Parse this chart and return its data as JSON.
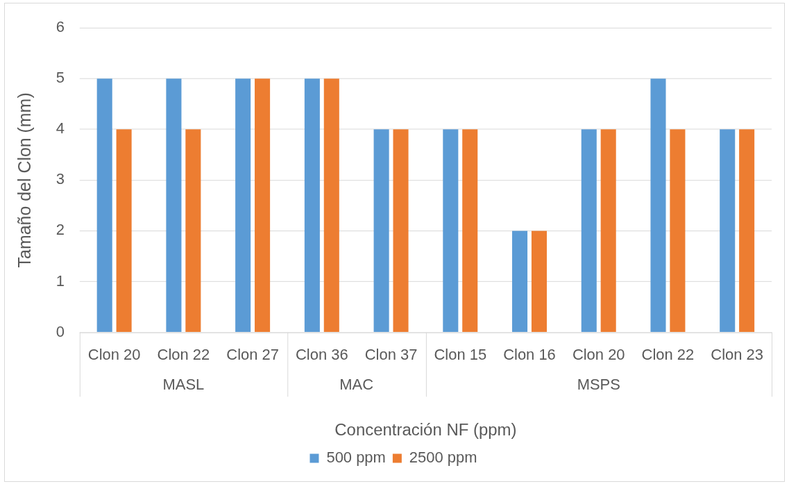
{
  "chart_data": {
    "type": "bar",
    "categories": [
      "Clon 20",
      "Clon 22",
      "Clon 27",
      "Clon 36",
      "Clon 37",
      "Clon 15",
      "Clon 16",
      "Clon 20",
      "Clon 22",
      "Clon 23"
    ],
    "series": [
      {
        "name": "500 ppm",
        "color": "#5b9bd5",
        "values": [
          5,
          5,
          5,
          5,
          4,
          4,
          2,
          4,
          5,
          4
        ]
      },
      {
        "name": "2500 ppm",
        "color": "#ed7d31",
        "values": [
          4,
          4,
          5,
          5,
          4,
          4,
          2,
          4,
          4,
          4
        ]
      }
    ],
    "xlabel": "Concentración NF (ppm)",
    "ylabel": "Tamaño del Clon (mm)",
    "ylim": [
      0,
      6
    ],
    "yticks": [
      0,
      1,
      2,
      3,
      4,
      5,
      6
    ],
    "grid": "y",
    "legend": "bottom",
    "annotations": [
      "MASL",
      "MAC",
      "MSPS"
    ]
  }
}
